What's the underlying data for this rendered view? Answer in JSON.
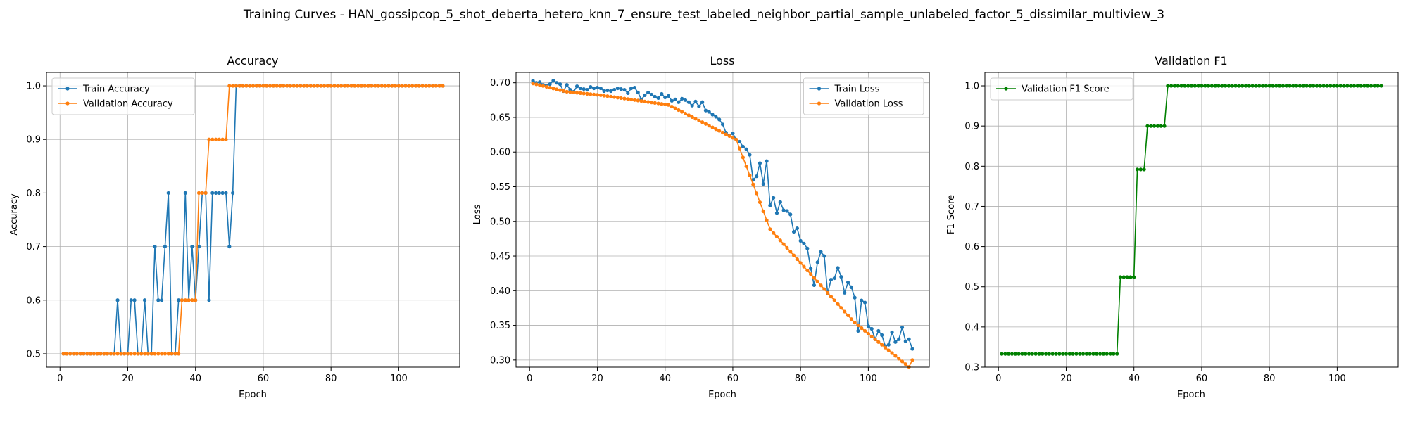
{
  "figure_title": "Training Curves - HAN_gossipcop_5_shot_deberta_hetero_knn_7_ensure_test_labeled_neighbor_partial_sample_unlabeled_factor_5_dissimilar_multiview_3",
  "colors": {
    "blue": "#1f77b4",
    "orange": "#ff7f0e",
    "green": "#008000",
    "grid": "#b0b0b0"
  },
  "chart_data": [
    {
      "type": "line",
      "title": "Accuracy",
      "xlabel": "Epoch",
      "ylabel": "Accuracy",
      "xlim": [
        -4,
        118
      ],
      "ylim": [
        0.475,
        1.025
      ],
      "xticks": [
        0,
        20,
        40,
        60,
        80,
        100
      ],
      "yticks": [
        0.5,
        0.6,
        0.7,
        0.8,
        0.9,
        1.0
      ],
      "ytick_labels": [
        "0.5",
        "0.6",
        "0.7",
        "0.8",
        "0.9",
        "1.0"
      ],
      "grid": true,
      "legend": "upper-left",
      "series": [
        {
          "name": "Train Accuracy",
          "color": "#1f77b4",
          "segments": [
            {
              "from": 1,
              "values": [
                0.5,
                0.5,
                0.5,
                0.5,
                0.5,
                0.5,
                0.5,
                0.5,
                0.5,
                0.5,
                0.5,
                0.5,
                0.5,
                0.5,
                0.5,
                0.5,
                0.6,
                0.5,
                0.5,
                0.5,
                0.6,
                0.6,
                0.5,
                0.5,
                0.6,
                0.5,
                0.5,
                0.7,
                0.6,
                0.6,
                0.7,
                0.8,
                0.5,
                0.5,
                0.6,
                0.6,
                0.8,
                0.6,
                0.7,
                0.6,
                0.7,
                0.8,
                0.8,
                0.6,
                0.8,
                0.8,
                0.8,
                0.8,
                0.8,
                0.7,
                0.8,
                1.0
              ]
            },
            {
              "from": 52,
              "to": 113,
              "constant": 1.0
            }
          ]
        },
        {
          "name": "Validation Accuracy",
          "color": "#ff7f0e",
          "segments": [
            {
              "from": 1,
              "values": [
                0.5,
                0.5,
                0.5,
                0.5,
                0.5,
                0.5,
                0.5,
                0.5,
                0.5,
                0.5,
                0.5,
                0.5,
                0.5,
                0.5,
                0.5,
                0.5,
                0.5,
                0.5,
                0.5,
                0.5,
                0.5,
                0.5,
                0.5,
                0.5,
                0.5,
                0.5,
                0.5,
                0.5,
                0.5,
                0.5,
                0.5,
                0.5,
                0.5,
                0.5,
                0.5,
                0.6,
                0.6,
                0.6,
                0.6,
                0.6,
                0.8,
                0.8,
                0.8,
                0.9,
                0.9,
                0.9,
                0.9,
                0.9,
                0.9,
                1.0
              ]
            },
            {
              "from": 51,
              "to": 113,
              "constant": 1.0
            }
          ]
        }
      ]
    },
    {
      "type": "line",
      "title": "Loss",
      "xlabel": "Epoch",
      "ylabel": "Loss",
      "xlim": [
        -4,
        118
      ],
      "ylim": [
        0.2897,
        0.7149
      ],
      "xticks": [
        0,
        20,
        40,
        60,
        80,
        100
      ],
      "yticks": [
        0.3,
        0.35,
        0.4,
        0.45,
        0.5,
        0.55,
        0.6,
        0.65,
        0.7
      ],
      "ytick_labels": [
        "0.30",
        "0.35",
        "0.40",
        "0.45",
        "0.50",
        "0.55",
        "0.60",
        "0.65",
        "0.70"
      ],
      "grid": true,
      "legend": "upper-right",
      "series": [
        {
          "name": "Train Loss",
          "color": "#1f77b4",
          "segments": [
            {
              "from": 1,
              "values": [
                0.703,
                0.7,
                0.701,
                0.697,
                0.696,
                0.698,
                0.703,
                0.7,
                0.698,
                0.688,
                0.697,
                0.69,
                0.687,
                0.695,
                0.692,
                0.691,
                0.69,
                0.694,
                0.692,
                0.693,
                0.692,
                0.688,
                0.689,
                0.688,
                0.69,
                0.692,
                0.691,
                0.69,
                0.685,
                0.692,
                0.693,
                0.686,
                0.676,
                0.682,
                0.686,
                0.683,
                0.68,
                0.678,
                0.684,
                0.679,
                0.681,
                0.674,
                0.676,
                0.672,
                0.677,
                0.675,
                0.672,
                0.667,
                0.673,
                0.666,
                0.672,
                0.66,
                0.658,
                0.654,
                0.651,
                0.647,
                0.64,
                0.628,
                0.624,
                0.627,
                0.618,
                0.615,
                0.608,
                0.604,
                0.596,
                0.56,
                0.565,
                0.584,
                0.554,
                0.587,
                0.523,
                0.534,
                0.512,
                0.528,
                0.516,
                0.515,
                0.51,
                0.485,
                0.49,
                0.472,
                0.468,
                0.461,
                0.432,
                0.408,
                0.441,
                0.456,
                0.45,
                0.396,
                0.416,
                0.418,
                0.433,
                0.42,
                0.397,
                0.412,
                0.405,
                0.39,
                0.342,
                0.386,
                0.383,
                0.349,
                0.345,
                0.33,
                0.342,
                0.336,
                0.32,
                0.322,
                0.34,
                0.326,
                0.33,
                0.347,
                0.327,
                0.33,
                0.316
              ]
            }
          ]
        },
        {
          "name": "Validation Loss",
          "color": "#ff7f0e",
          "segments": [
            {
              "from": 1,
              "values": [
                0.699,
                0.6978,
                0.6966,
                0.6954,
                0.6942,
                0.693,
                0.6918,
                0.6906,
                0.6894,
                0.6882,
                0.6871,
                0.6866,
                0.6861,
                0.6856,
                0.6851,
                0.6846,
                0.6841,
                0.6836,
                0.6831,
                0.6826,
                0.6821,
                0.6814,
                0.6807,
                0.68,
                0.6793,
                0.6786,
                0.6779,
                0.6772,
                0.6765,
                0.6758,
                0.6751,
                0.6744,
                0.6737,
                0.673,
                0.6723,
                0.6716,
                0.6709,
                0.6702,
                0.6695,
                0.6688,
                0.6681,
                0.6656,
                0.6631,
                0.6606,
                0.6581,
                0.6556,
                0.6531,
                0.6506,
                0.6481,
                0.6456,
                0.6431,
                0.6406,
                0.6381,
                0.6356,
                0.6331,
                0.6306,
                0.6281,
                0.6256,
                0.6231,
                0.6206,
                0.6181,
                0.6052,
                0.5922,
                0.5793,
                0.5664,
                0.5534,
                0.5405,
                0.5276,
                0.5146,
                0.5017,
                0.4888,
                0.4834,
                0.478,
                0.4726,
                0.4672,
                0.4618,
                0.4564,
                0.4509,
                0.4455,
                0.4401,
                0.4347,
                0.4293,
                0.4239,
                0.4185,
                0.4131,
                0.4077,
                0.4023,
                0.3969,
                0.3915,
                0.3861,
                0.3807,
                0.3752,
                0.3698,
                0.3644,
                0.359,
                0.354,
                0.35,
                0.346,
                0.342,
                0.338,
                0.334,
                0.33,
                0.326,
                0.322,
                0.318,
                0.314,
                0.31,
                0.306,
                0.302,
                0.298,
                0.294,
                0.29,
                0.3
              ]
            }
          ]
        }
      ]
    },
    {
      "type": "line",
      "title": "Validation F1",
      "xlabel": "Epoch",
      "ylabel": "F1 Score",
      "xlim": [
        -4,
        118
      ],
      "ylim": [
        0.3,
        1.0333
      ],
      "xticks": [
        0,
        20,
        40,
        60,
        80,
        100
      ],
      "yticks": [
        0.3,
        0.4,
        0.5,
        0.6,
        0.7,
        0.8,
        0.9,
        1.0
      ],
      "ytick_labels": [
        "0.3",
        "0.4",
        "0.5",
        "0.6",
        "0.7",
        "0.8",
        "0.9",
        "1.0"
      ],
      "grid": true,
      "legend": "upper-left",
      "series": [
        {
          "name": "Validation F1 Score",
          "color": "#008000",
          "segments": [
            {
              "from": 1,
              "to": 35,
              "constant": 0.333
            },
            {
              "from": 36,
              "values": [
                0.524,
                0.524,
                0.524,
                0.524,
                0.524,
                0.792,
                0.792,
                0.792,
                0.9,
                0.9,
                0.9,
                0.9,
                0.9,
                0.9
              ]
            },
            {
              "from": 50,
              "to": 113,
              "constant": 1.0
            }
          ]
        }
      ]
    }
  ]
}
